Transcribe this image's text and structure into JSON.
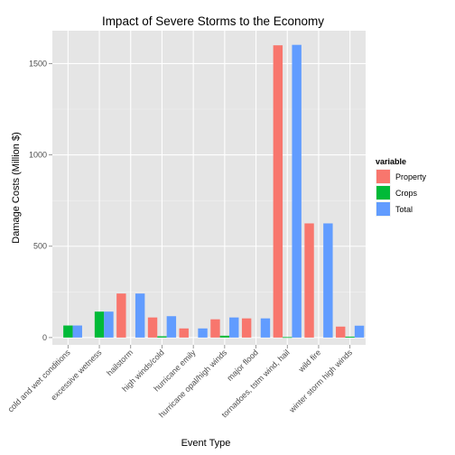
{
  "chart_data": {
    "type": "bar",
    "title": "Impact of Severe Storms to the Economy",
    "xlabel": "Event Type",
    "ylabel": "Damage Costs (Million $)",
    "categories": [
      "cold and wet conditions",
      "excessive wetness",
      "hailstorm",
      "high winds/cold",
      "hurricane emily",
      "hurricane opal/high winds",
      "major flood",
      "tornadoes, tstm wind, hail",
      "wild fire",
      "winter storm high winds"
    ],
    "series": [
      {
        "name": "Property",
        "color": "#f8766d",
        "values": [
          0,
          0,
          241,
          110,
          50,
          100,
          105,
          1600,
          625,
          60
        ]
      },
      {
        "name": "Crops",
        "color": "#00ba38",
        "values": [
          66,
          142,
          0,
          7,
          0,
          10,
          0,
          2.5,
          0,
          5
        ]
      },
      {
        "name": "Total",
        "color": "#619cff",
        "values": [
          66,
          142,
          241,
          117,
          50,
          110,
          105,
          1602.5,
          625,
          65
        ]
      }
    ],
    "ylim": [
      -40,
      1680
    ],
    "yticks": [
      0,
      500,
      1000,
      1500
    ],
    "grid": true,
    "legend": {
      "title": "variable",
      "position": "right"
    },
    "colors": {
      "panel_bg": "#e5e5e5",
      "grid_major": "#ffffff",
      "grid_minor": "#f2f2f2"
    }
  }
}
